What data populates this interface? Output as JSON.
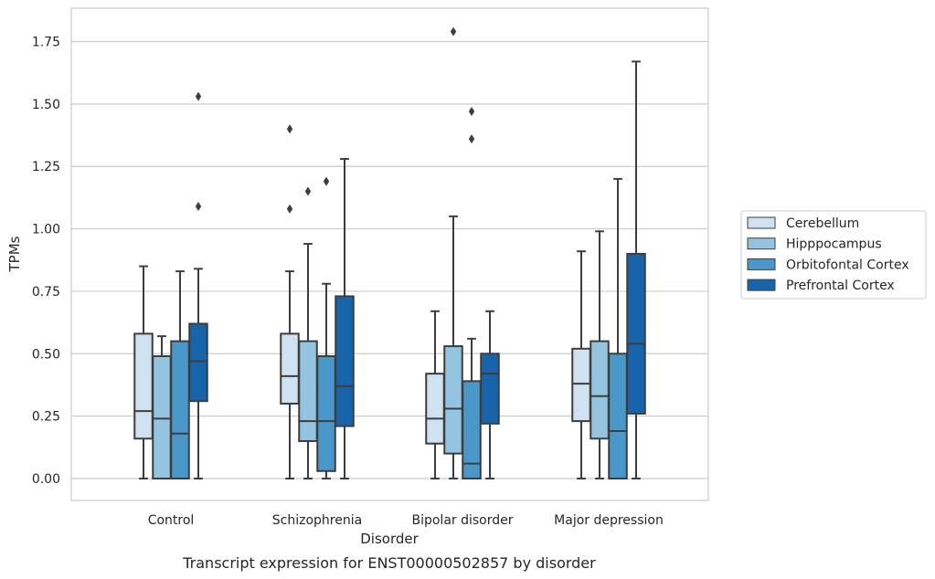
{
  "chart_data": {
    "type": "box",
    "title": "Transcript expression for ENST00000502857 by disorder",
    "xlabel": "Disorder",
    "ylabel": "TPMs",
    "ylim": [
      -0.08,
      1.88
    ],
    "yticks": [
      0.0,
      0.25,
      0.5,
      0.75,
      1.0,
      1.25,
      1.5,
      1.75
    ],
    "ytick_labels": [
      "0.00",
      "0.25",
      "0.50",
      "0.75",
      "1.00",
      "1.25",
      "1.50",
      "1.75"
    ],
    "grid": true,
    "legend_position": "right",
    "categories": [
      "Control",
      "Schizophrenia",
      "Bipolar disorder",
      "Major depression"
    ],
    "series": [
      {
        "name": "Cerebellum",
        "color": "#d0e1f2",
        "boxes": [
          {
            "category": "Control",
            "whisker_low": 0.0,
            "q1": 0.16,
            "median": 0.27,
            "q3": 0.58,
            "whisker_high": 0.85,
            "outliers": []
          },
          {
            "category": "Schizophrenia",
            "whisker_low": 0.0,
            "q1": 0.3,
            "median": 0.41,
            "q3": 0.58,
            "whisker_high": 0.83,
            "outliers": [
              1.08,
              1.4
            ]
          },
          {
            "category": "Bipolar disorder",
            "whisker_low": 0.0,
            "q1": 0.14,
            "median": 0.24,
            "q3": 0.42,
            "whisker_high": 0.67,
            "outliers": []
          },
          {
            "category": "Major depression",
            "whisker_low": 0.0,
            "q1": 0.23,
            "median": 0.38,
            "q3": 0.52,
            "whisker_high": 0.91,
            "outliers": []
          }
        ]
      },
      {
        "name": "Hipppocampus",
        "color": "#94c4df",
        "boxes": [
          {
            "category": "Control",
            "whisker_low": 0.0,
            "q1": 0.0,
            "median": 0.24,
            "q3": 0.49,
            "whisker_high": 0.57,
            "outliers": []
          },
          {
            "category": "Schizophrenia",
            "whisker_low": 0.0,
            "q1": 0.15,
            "median": 0.23,
            "q3": 0.55,
            "whisker_high": 0.94,
            "outliers": [
              1.15
            ]
          },
          {
            "category": "Bipolar disorder",
            "whisker_low": 0.0,
            "q1": 0.1,
            "median": 0.28,
            "q3": 0.53,
            "whisker_high": 1.05,
            "outliers": [
              1.79
            ]
          },
          {
            "category": "Major depression",
            "whisker_low": 0.0,
            "q1": 0.16,
            "median": 0.33,
            "q3": 0.55,
            "whisker_high": 0.99,
            "outliers": []
          }
        ]
      },
      {
        "name": "Orbitofontal Cortex",
        "color": "#4a98c9",
        "boxes": [
          {
            "category": "Control",
            "whisker_low": 0.0,
            "q1": 0.0,
            "median": 0.18,
            "q3": 0.55,
            "whisker_high": 0.83,
            "outliers": []
          },
          {
            "category": "Schizophrenia",
            "whisker_low": 0.0,
            "q1": 0.03,
            "median": 0.23,
            "q3": 0.49,
            "whisker_high": 0.78,
            "outliers": [
              1.19
            ]
          },
          {
            "category": "Bipolar disorder",
            "whisker_low": 0.0,
            "q1": 0.0,
            "median": 0.06,
            "q3": 0.39,
            "whisker_high": 0.56,
            "outliers": [
              1.36,
              1.47
            ]
          },
          {
            "category": "Major depression",
            "whisker_low": 0.0,
            "q1": 0.0,
            "median": 0.19,
            "q3": 0.5,
            "whisker_high": 1.2,
            "outliers": []
          }
        ]
      },
      {
        "name": "Prefrontal Cortex",
        "color": "#1764ab",
        "boxes": [
          {
            "category": "Control",
            "whisker_low": 0.0,
            "q1": 0.31,
            "median": 0.47,
            "q3": 0.62,
            "whisker_high": 0.84,
            "outliers": [
              1.09,
              1.53
            ]
          },
          {
            "category": "Schizophrenia",
            "whisker_low": 0.0,
            "q1": 0.21,
            "median": 0.37,
            "q3": 0.73,
            "whisker_high": 1.28,
            "outliers": []
          },
          {
            "category": "Bipolar disorder",
            "whisker_low": 0.0,
            "q1": 0.22,
            "median": 0.42,
            "q3": 0.5,
            "whisker_high": 0.67,
            "outliers": []
          },
          {
            "category": "Major depression",
            "whisker_low": 0.0,
            "q1": 0.26,
            "median": 0.54,
            "q3": 0.9,
            "whisker_high": 1.67,
            "outliers": []
          }
        ]
      }
    ]
  }
}
